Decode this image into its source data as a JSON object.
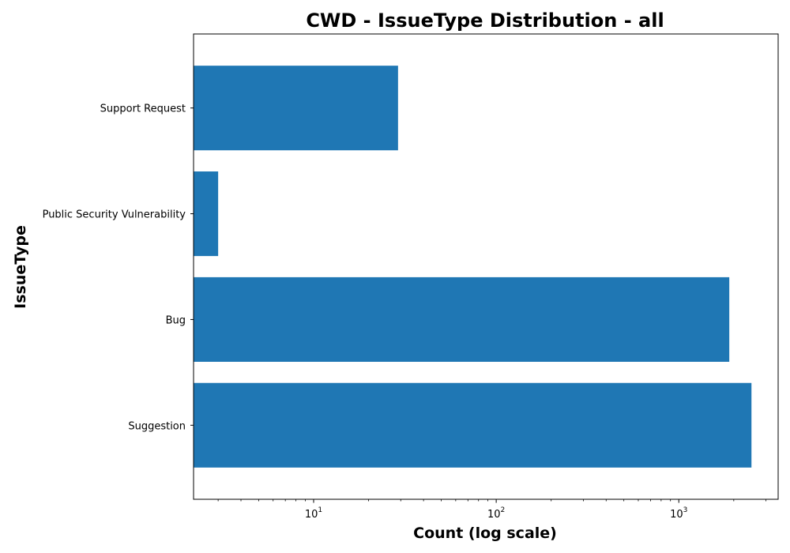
{
  "chart_data": {
    "type": "bar",
    "orientation": "horizontal",
    "title": "CWD - IssueType Distribution - all",
    "xlabel": "Count (log scale)",
    "ylabel": "IssueType",
    "x_scale": "log",
    "xlim": [
      2.2,
      3500
    ],
    "categories": [
      "Suggestion",
      "Bug",
      "Public Security Vulnerability",
      "Support Request"
    ],
    "values": [
      2500,
      1890,
      3,
      29
    ],
    "x_major_ticks": [
      {
        "value": 10,
        "base": "10",
        "exp": "1"
      },
      {
        "value": 100,
        "base": "10",
        "exp": "2"
      },
      {
        "value": 1000,
        "base": "10",
        "exp": "3"
      }
    ],
    "bar_color": "#1f77b4",
    "grid": false,
    "legend": "none"
  }
}
